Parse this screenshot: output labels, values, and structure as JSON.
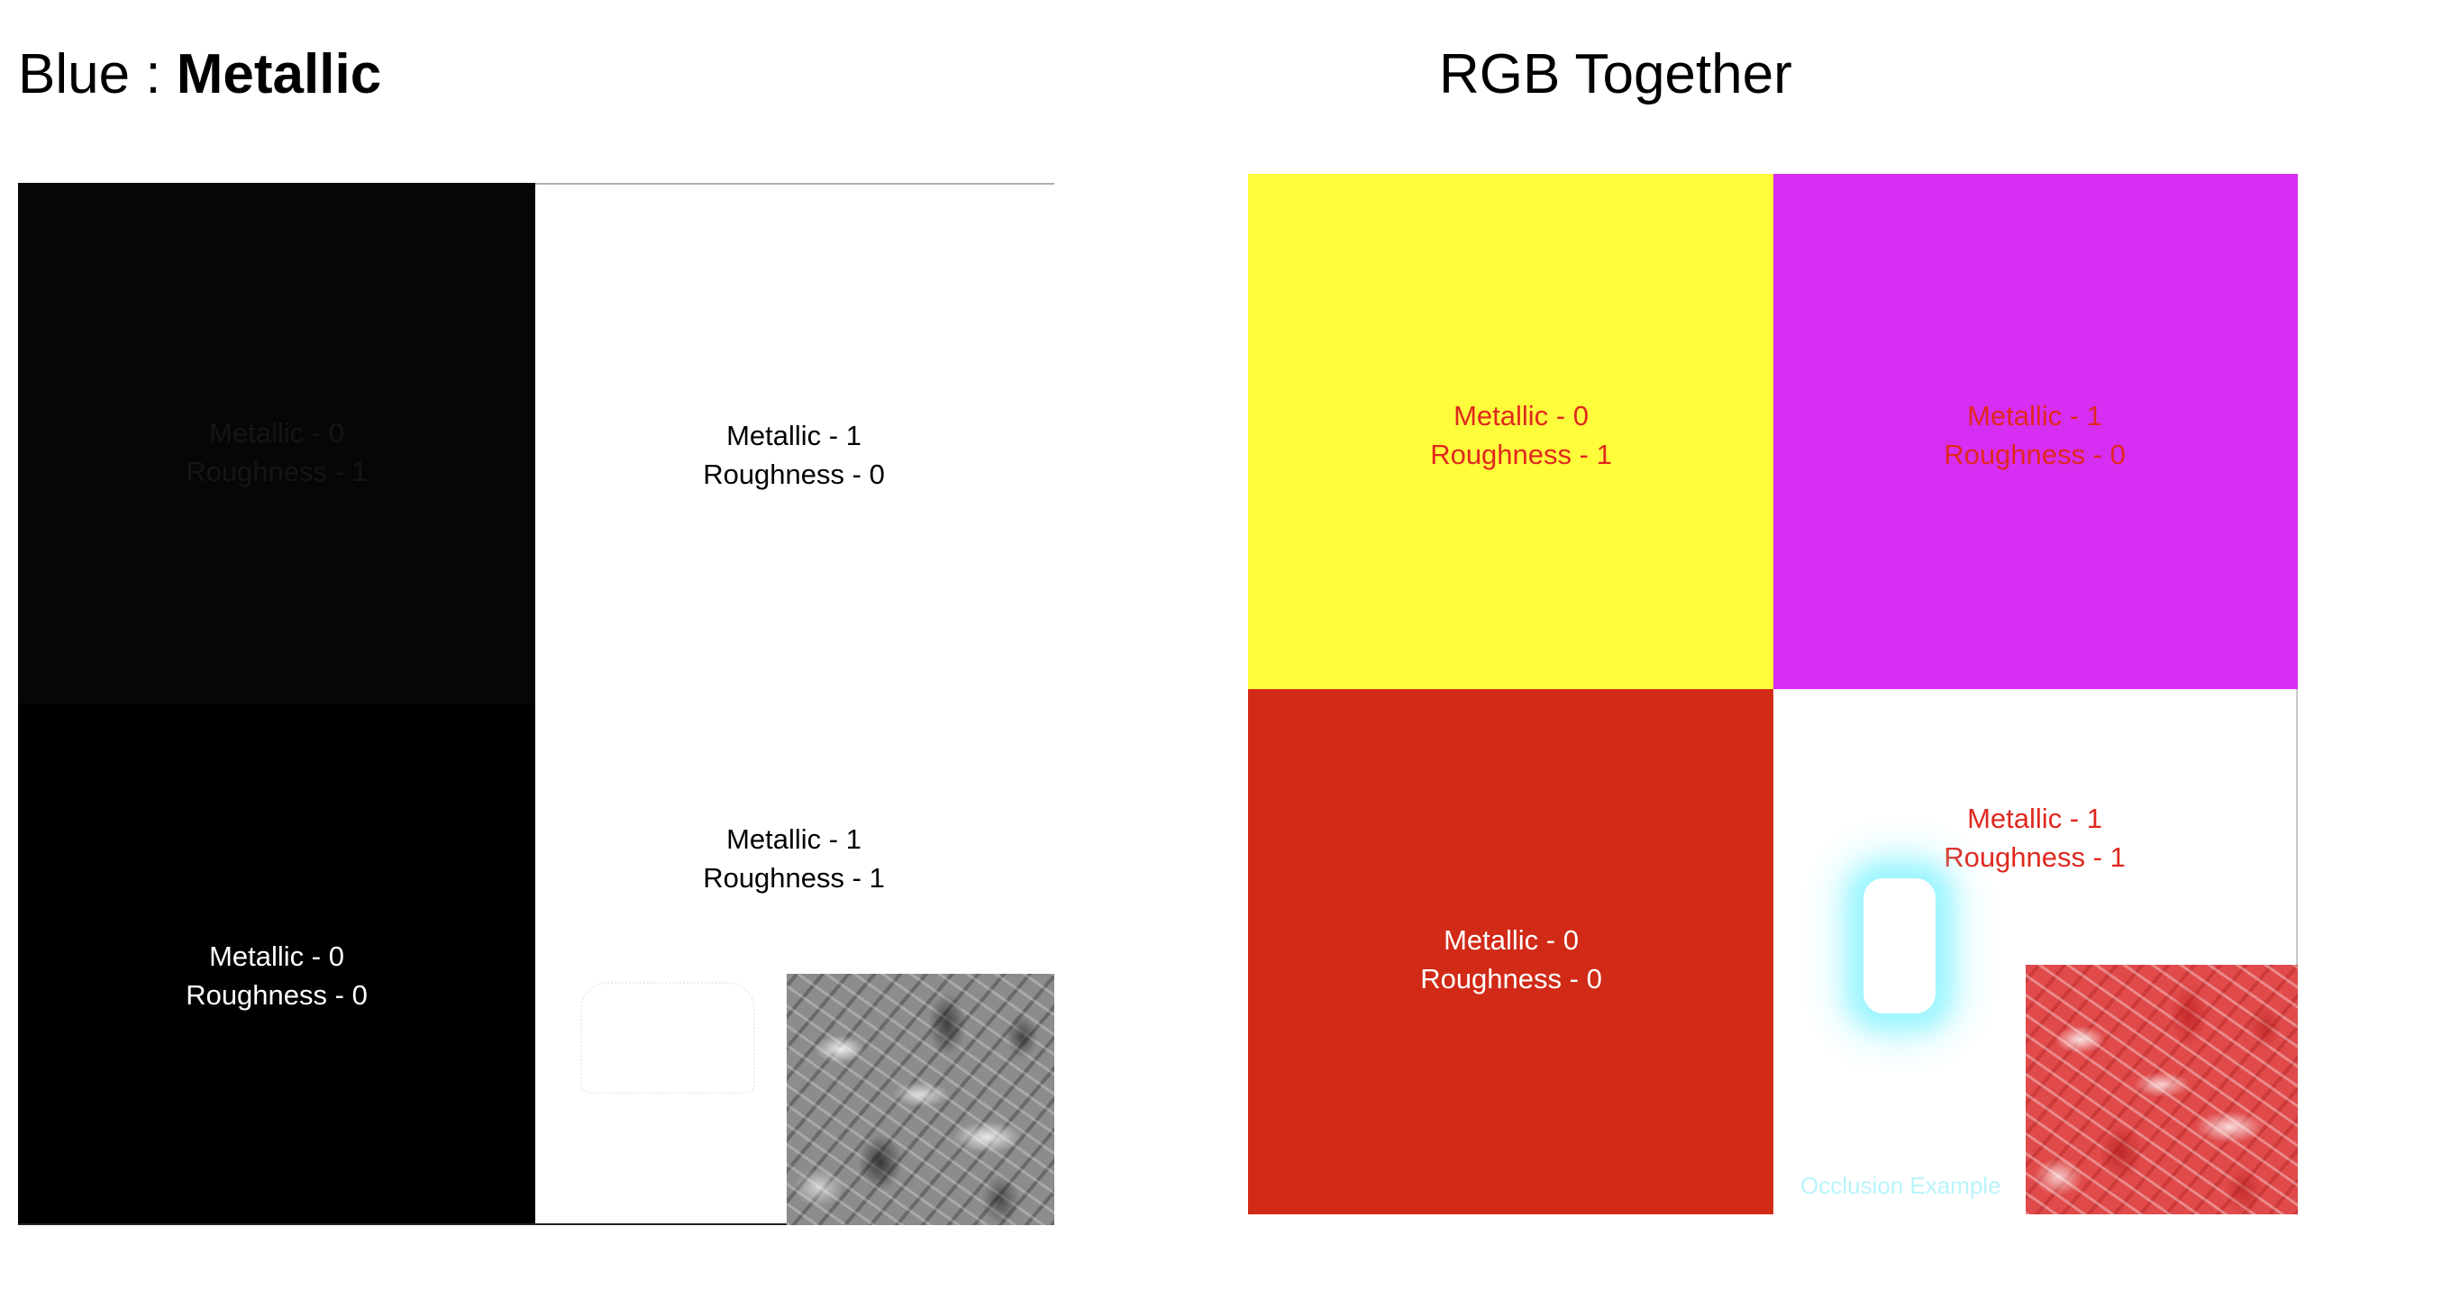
{
  "left": {
    "title_prefix": "Blue : ",
    "title_bold": "Metallic",
    "quadrants": [
      {
        "line1": "Metallic - 1",
        "line2": "Roughness - 0"
      },
      {
        "line1": "Metallic - 1",
        "line2": "Roughness - 1"
      },
      {
        "line1": "Metallic - 0",
        "line2": "Roughness - 0"
      }
    ],
    "hidden_label": {
      "line1": "Metallic - 0",
      "line2": "Roughness - 1"
    }
  },
  "right": {
    "title": "RGB Together",
    "quadrants": [
      {
        "line1": "Metallic - 0",
        "line2": "Roughness - 1"
      },
      {
        "line1": "Metallic - 1",
        "line2": "Roughness - 0"
      },
      {
        "line1": "Metallic - 0",
        "line2": "Roughness - 0"
      },
      {
        "line1": "Metallic - 1",
        "line2": "Roughness - 1"
      }
    ],
    "occlusion_caption": "Occlusion Example"
  },
  "colors": {
    "black": "#000000",
    "white": "#ffffff",
    "yellow": "#fdfd3b",
    "magenta": "#d62ef2",
    "red": "#d12a17",
    "label_red": "#e0281e",
    "cyan_glow": "#7ff3ff"
  }
}
